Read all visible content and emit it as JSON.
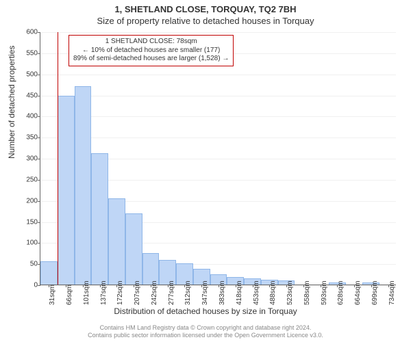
{
  "header": {
    "address": "1, SHETLAND CLOSE, TORQUAY, TQ2 7BH",
    "subtitle": "Size of property relative to detached houses in Torquay"
  },
  "chart": {
    "type": "histogram",
    "ylabel": "Number of detached properties",
    "xlabel": "Distribution of detached houses by size in Torquay",
    "ylim": [
      0,
      600
    ],
    "ytick_step": 50,
    "xtick_labels": [
      "31sqm",
      "66sqm",
      "101sqm",
      "137sqm",
      "172sqm",
      "207sqm",
      "242sqm",
      "277sqm",
      "312sqm",
      "347sqm",
      "383sqm",
      "418sqm",
      "453sqm",
      "488sqm",
      "523sqm",
      "558sqm",
      "593sqm",
      "628sqm",
      "664sqm",
      "699sqm",
      "734sqm"
    ],
    "values": [
      55,
      448,
      470,
      312,
      205,
      168,
      75,
      58,
      50,
      38,
      24,
      18,
      15,
      12,
      10,
      0,
      0,
      5,
      0,
      5,
      0
    ],
    "bar_fill": "#bfd6f6",
    "bar_stroke": "#8fb6e8",
    "marker_color": "#c00000",
    "marker_after_bin_index": 0,
    "background_color": "#ffffff",
    "grid_color": "#f0f0f0",
    "axis_color": "#666666",
    "tick_fontsize": 10,
    "label_fontsize": 12,
    "title_fontsize": 13
  },
  "annotation": {
    "line1": "1 SHETLAND CLOSE: 78sqm",
    "line2": "← 10% of detached houses are smaller (177)",
    "line3": "89% of semi-detached houses are larger (1,528) →"
  },
  "footer": {
    "line1": "Contains HM Land Registry data © Crown copyright and database right 2024.",
    "line2": "Contains public sector information licensed under the Open Government Licence v3.0."
  }
}
